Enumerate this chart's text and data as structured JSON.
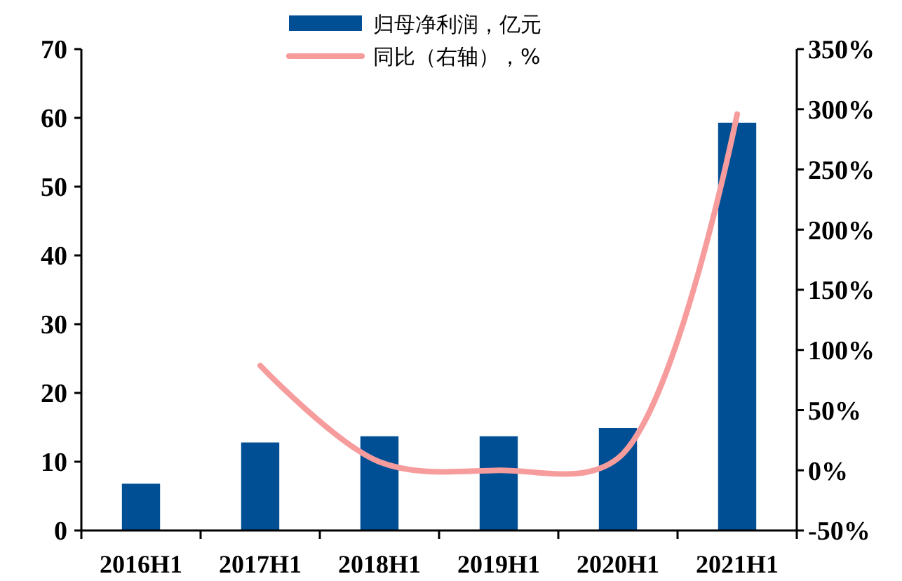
{
  "chart_data": {
    "type": "bar",
    "categories": [
      "2016H1",
      "2017H1",
      "2018H1",
      "2019H1",
      "2020H1",
      "2021H1"
    ],
    "series": [
      {
        "name": "归母净利润，亿元",
        "color": "#004f94",
        "values": [
          6.8,
          12.8,
          13.7,
          13.7,
          14.9,
          59.3
        ]
      },
      {
        "name": "同比（右轴），%",
        "type": "line",
        "axis": "y2",
        "color": "#f79c9c",
        "values": [
          null,
          87,
          7,
          0,
          10,
          296
        ]
      }
    ],
    "ylim": [
      0,
      70
    ],
    "yticks": [
      0,
      10,
      20,
      30,
      40,
      50,
      60,
      70
    ],
    "y2lim": [
      -50,
      350
    ],
    "y2ticks": [
      {
        "value": -50,
        "label": "-50%"
      },
      {
        "value": 0,
        "label": "0%"
      },
      {
        "value": 50,
        "label": "50%"
      },
      {
        "value": 100,
        "label": "100%"
      },
      {
        "value": 150,
        "label": "150%"
      },
      {
        "value": 200,
        "label": "200%"
      },
      {
        "value": 250,
        "label": "250%"
      },
      {
        "value": 300,
        "label": "300%"
      },
      {
        "value": 350,
        "label": "350%"
      }
    ],
    "legend": "top",
    "grid": false
  }
}
